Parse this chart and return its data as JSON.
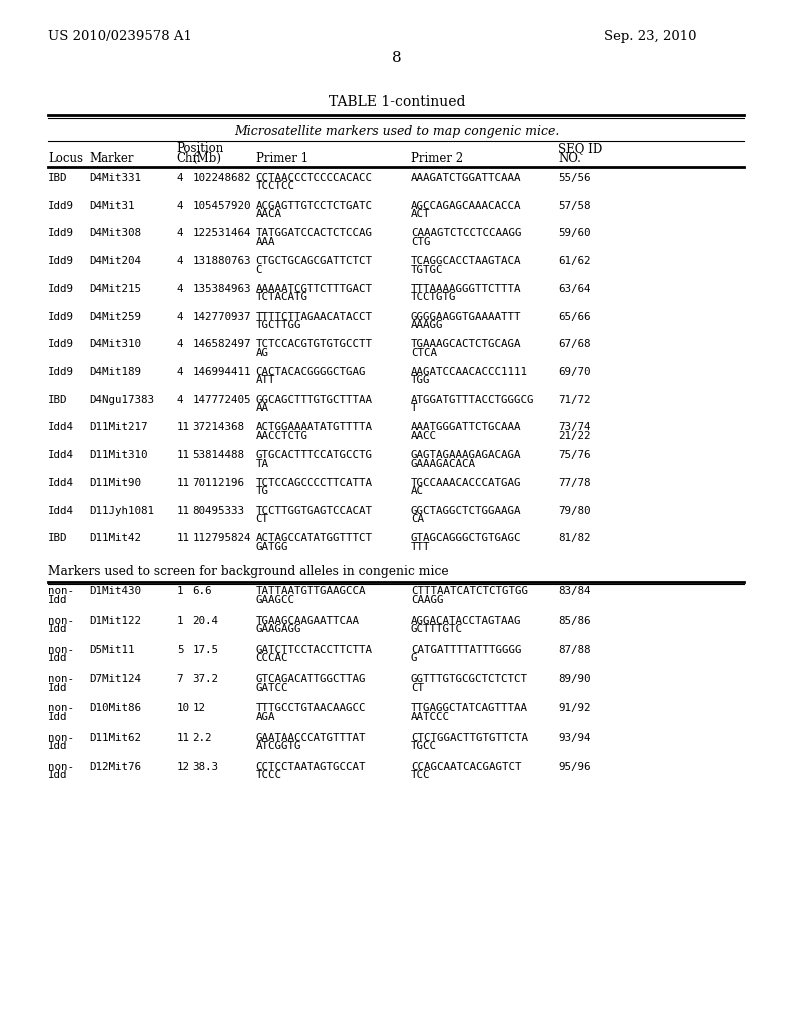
{
  "patent_number": "US 2010/0239578 A1",
  "date": "Sep. 23, 2010",
  "page_number": "8",
  "table_title": "TABLE 1-continued",
  "section1_header": "Microsatellite markers used to map congenic mice.",
  "section2_header": "Markers used to screen for background alleles in congenic mice",
  "rows": [
    {
      "locus": "IBD",
      "marker": "D4Mit331",
      "chr": "4",
      "mb": "102248682",
      "p1a": "CCTAACCCTCCCCACACC",
      "p1b": "TCCTCC",
      "p2a": "AAAGATCTGGATTCAAA",
      "p2b": "",
      "seq": "55/56"
    },
    {
      "locus": "Idd9",
      "marker": "D4Mit31",
      "chr": "4",
      "mb": "105457920",
      "p1a": "ACGAGTTGTCCTCTGATC",
      "p1b": "AACA",
      "p2a": "AGCCAGAGCAAACACCA",
      "p2b": "ACT",
      "seq": "57/58"
    },
    {
      "locus": "Idd9",
      "marker": "D4Mit308",
      "chr": "4",
      "mb": "122531464",
      "p1a": "TATGGATCCACTCTCCAG",
      "p1b": "AAA",
      "p2a": "CAAAGTCTCCTCCAAGG",
      "p2b": "CTG",
      "seq": "59/60"
    },
    {
      "locus": "Idd9",
      "marker": "D4Mit204",
      "chr": "4",
      "mb": "131880763",
      "p1a": "CTGCTGCAGCGATTCTCT",
      "p1b": "C",
      "p2a": "TCAGGCACCTAAGTACA",
      "p2b": "TGTGC",
      "seq": "61/62"
    },
    {
      "locus": "Idd9",
      "marker": "D4Mit215",
      "chr": "4",
      "mb": "135384963",
      "p1a": "AAAAATCGTTCTTTGACT",
      "p1b": "TCTACATG",
      "p2a": "TTTAAAAGGGTTCTTTA",
      "p2b": "TCCTGTG",
      "seq": "63/64"
    },
    {
      "locus": "Idd9",
      "marker": "D4Mit259",
      "chr": "4",
      "mb": "142770937",
      "p1a": "TTTTCTTAGAACATACCT",
      "p1b": "TGCTTGG",
      "p2a": "GGGGAAGGTGAAAATTT",
      "p2b": "AAAGG",
      "seq": "65/66"
    },
    {
      "locus": "Idd9",
      "marker": "D4Mit310",
      "chr": "4",
      "mb": "146582497",
      "p1a": "TCTCCACGTGTGTGCCTT",
      "p1b": "AG",
      "p2a": "TGAAAGCACTCTGCAGA",
      "p2b": "CTCA",
      "seq": "67/68"
    },
    {
      "locus": "Idd9",
      "marker": "D4Mit189",
      "chr": "4",
      "mb": "146994411",
      "p1a": "CACTACACGGGGCTGAG",
      "p1b": "ATT",
      "p2a": "AAGATCCAACACCC1111",
      "p2b": "TGG",
      "seq": "69/70"
    },
    {
      "locus": "IBD",
      "marker": "D4Ngu17383",
      "chr": "4",
      "mb": "147772405",
      "p1a": "GGCAGCTTTGTGCTTTAA",
      "p1b": "AA",
      "p2a": "ATGGATGTTTACCTGGGCG",
      "p2b": "T",
      "seq": "71/72"
    },
    {
      "locus": "Idd4",
      "marker": "D11Mit217",
      "chr": "11",
      "mb": "37214368",
      "p1a": "ACTGGAAAATATGTTTTA",
      "p1b": "AACCTCTG",
      "p2a": "AAATGGGATTCTGCAAA",
      "p2b": "AACC",
      "seq": "73/74",
      "seq2": "21/22"
    },
    {
      "locus": "Idd4",
      "marker": "D11Mit310",
      "chr": "11",
      "mb": "53814488",
      "p1a": "GTGCACTTTCCATGCCTG",
      "p1b": "TA",
      "p2a": "GAGTAGAAAGAGACAGA",
      "p2b": "GAAAGACACA",
      "seq": "75/76"
    },
    {
      "locus": "Idd4",
      "marker": "D11Mit90",
      "chr": "11",
      "mb": "70112196",
      "p1a": "TCTCCAGCCCCTTCATTA",
      "p1b": "TG",
      "p2a": "TGCCAAACACCCATGAG",
      "p2b": "AC",
      "seq": "77/78"
    },
    {
      "locus": "Idd4",
      "marker": "D11Jyh1081",
      "chr": "11",
      "mb": "80495333",
      "p1a": "TCCTTGGTGAGTCCACAT",
      "p1b": "CT",
      "p2a": "GGCTAGGCTCTGGAAGA",
      "p2b": "CA",
      "seq": "79/80"
    },
    {
      "locus": "IBD",
      "marker": "D11Mit42",
      "chr": "11",
      "mb": "112795824",
      "p1a": "ACTAGCCATATGGTTTCT",
      "p1b": "GATGG",
      "p2a": "GTAGCAGGGCTGTGAGC",
      "p2b": "TTT",
      "seq": "81/82"
    }
  ],
  "rows2": [
    {
      "locus": "non-",
      "locus2": "Idd",
      "marker": "D1Mit430",
      "chr": "1",
      "mb": "6.6",
      "p1a": "TATTAATGTTGAAGCCA",
      "p1b": "GAAGCC",
      "p2a": "CTTTAATCATCTCTGTGG",
      "p2b": "CAAGG",
      "seq": "83/84"
    },
    {
      "locus": "non-",
      "locus2": "Idd",
      "marker": "D1Mit122",
      "chr": "1",
      "mb": "20.4",
      "p1a": "TGAAGCAAGAATTCAA",
      "p1b": "GAAGAGG",
      "p2a": "AGGACATACCTAGTAAG",
      "p2b": "GCTTTGTC",
      "seq": "85/86"
    },
    {
      "locus": "non-",
      "locus2": "Idd",
      "marker": "D5Mit11",
      "chr": "5",
      "mb": "17.5",
      "p1a": "GATCTTCCTACCTTCTTA",
      "p1b": "CCCAC",
      "p2a": "CATGATTTTATTTGGGG",
      "p2b": "G",
      "seq": "87/88"
    },
    {
      "locus": "non-",
      "locus2": "Idd",
      "marker": "D7Mit124",
      "chr": "7",
      "mb": "37.2",
      "p1a": "GTCAGACATTGGCTTAG",
      "p1b": "GATCC",
      "p2a": "GGTTTGTGCGCTCTCTCT",
      "p2b": "CT",
      "seq": "89/90"
    },
    {
      "locus": "non-",
      "locus2": "Idd",
      "marker": "D10Mit86",
      "chr": "10",
      "mb": "12",
      "p1a": "TTTGCCTGTAACAAGCC",
      "p1b": "AGA",
      "p2a": "TTGAGGCTATCAGTTTAA",
      "p2b": "AATCCC",
      "seq": "91/92"
    },
    {
      "locus": "non-",
      "locus2": "Idd",
      "marker": "D11Mit62",
      "chr": "11",
      "mb": "2.2",
      "p1a": "GAATAACCCATGTTTAT",
      "p1b": "ATCGGTG",
      "p2a": "CTCTGGACTTGTGTTCTA",
      "p2b": "TGCC",
      "seq": "93/94"
    },
    {
      "locus": "non-",
      "locus2": "Idd",
      "marker": "D12Mit76",
      "chr": "12",
      "mb": "38.3",
      "p1a": "CCTCCTAATAGTGCCAT",
      "p1b": "TCCC",
      "p2a": "CCAGCAATCACGAGTCT",
      "p2b": "TCC",
      "seq": "95/96"
    }
  ],
  "bg_color": "#ffffff",
  "text_color": "#000000",
  "font_size": 7.8,
  "mono_font": "DejaVu Sans Mono",
  "serif_font": "DejaVu Serif",
  "col_locus": 62,
  "col_marker": 115,
  "col_chr": 228,
  "col_mb": 248,
  "col_p1": 330,
  "col_p2": 530,
  "col_seq": 720
}
